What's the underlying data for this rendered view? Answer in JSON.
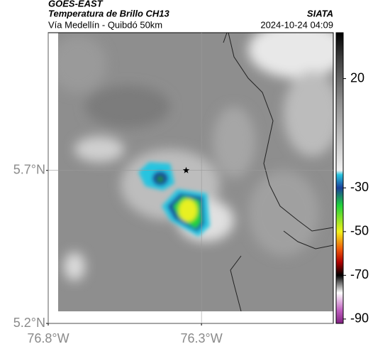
{
  "chart_data": {
    "type": "map",
    "header": {
      "source": "GOES-EAST",
      "title": "Temperatura de Brillo CH13",
      "brand": "SIATA",
      "subtitle": "Vía Medellín - Quibdó 50km",
      "timestamp": "2024-10-24 04:09"
    },
    "xlim": [
      -76.8,
      -75.87
    ],
    "ylim": [
      5.2,
      6.15
    ],
    "xticks": [
      {
        "value": -76.8,
        "label": "76.8°W"
      },
      {
        "value": -76.3,
        "label": "76.3°W"
      }
    ],
    "yticks": [
      {
        "value": 5.2,
        "label": "5.2°N"
      },
      {
        "value": 5.7,
        "label": "5.7°N"
      }
    ],
    "grid": true,
    "marker": {
      "x": -76.35,
      "y": 5.7
    },
    "colorbar": {
      "lim": [
        -92,
        41
      ],
      "ticks": [
        20,
        -30,
        -50,
        -70,
        -90
      ],
      "colormap": [
        {
          "value": 41,
          "color": "#000000"
        },
        {
          "value": 30,
          "color": "#3a3a3a"
        },
        {
          "value": 10,
          "color": "#8c8c8c"
        },
        {
          "value": -22,
          "color": "#f2f2f2"
        },
        {
          "value": -24,
          "color": "#29c6e0"
        },
        {
          "value": -30,
          "color": "#1a3f9a"
        },
        {
          "value": -38,
          "color": "#1fd23a"
        },
        {
          "value": -50,
          "color": "#f2f21a"
        },
        {
          "value": -58,
          "color": "#f05a0a"
        },
        {
          "value": -64,
          "color": "#b00000"
        },
        {
          "value": -70,
          "color": "#000000"
        },
        {
          "value": -78,
          "color": "#ffffff"
        },
        {
          "value": -86,
          "color": "#c060c0"
        },
        {
          "value": -92,
          "color": "#801f80"
        }
      ]
    }
  }
}
